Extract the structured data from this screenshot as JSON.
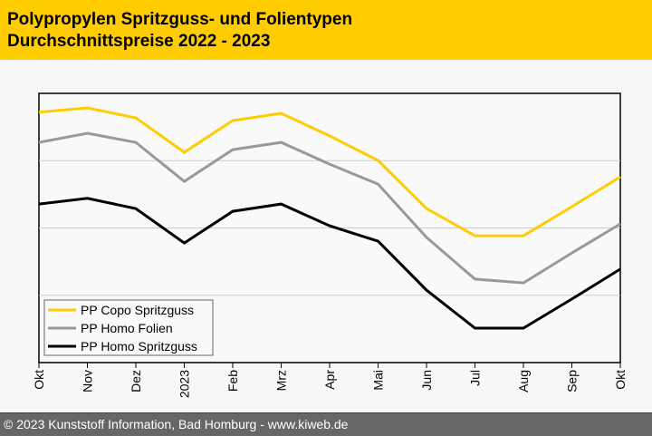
{
  "header": {
    "title_line1": "Polypropylen Spritzguss- und Folientypen",
    "title_line2": "Durchschnittspreise 2022 - 2023",
    "background_color": "#ffcc00"
  },
  "footer": {
    "text": "© 2023 Kunststoff Information, Bad Homburg - www.kiweb.de"
  },
  "chart_data": {
    "type": "line",
    "title": "Polypropylen Spritzguss- und Folientypen Durchschnittspreise 2022 - 2023",
    "xlabel": "",
    "ylabel": "",
    "y_unit": "relative index (no y-axis labels shown)",
    "ylim": [
      0,
      100
    ],
    "grid": true,
    "legend_position": "bottom-left",
    "categories": [
      "Okt",
      "Nov",
      "Dez",
      "2023",
      "Feb",
      "Mrz",
      "Apr",
      "Mai",
      "Jun",
      "Jul",
      "Aug",
      "Sep",
      "Okt"
    ],
    "series": [
      {
        "name": "PP Copo Spritzguss",
        "color": "#ffcc00",
        "values": [
          93,
          94.6,
          90.9,
          78.1,
          89.9,
          92.6,
          84.2,
          75.1,
          57.2,
          47.1,
          47.1,
          57.9,
          69.0
        ]
      },
      {
        "name": "PP Homo Folien",
        "color": "#999999",
        "values": [
          81.8,
          85.2,
          81.8,
          67.3,
          79.1,
          81.8,
          73.7,
          66.3,
          46.5,
          31.0,
          29.6,
          40.7,
          51.5
        ]
      },
      {
        "name": "PP Homo Spritzguss",
        "color": "#000000",
        "values": [
          58.9,
          61.0,
          57.2,
          44.4,
          56.2,
          58.9,
          50.8,
          45.1,
          26.9,
          12.8,
          12.8,
          23.6,
          34.7
        ]
      }
    ]
  }
}
